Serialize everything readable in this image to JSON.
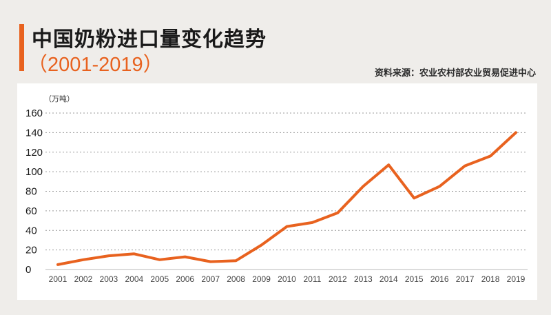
{
  "header": {
    "title": "中国奶粉进口量变化趋势",
    "subtitle": "（2001-2019）",
    "source": "资料来源：农业农村部农业贸易促进中心"
  },
  "colors": {
    "accent": "#e8621f",
    "background": "#efedea",
    "panel": "#ffffff",
    "grid": "#9a9a9a"
  },
  "chart_data": {
    "type": "line",
    "title": "中国奶粉进口量变化趋势",
    "subtitle": "（2001-2019）",
    "ylabel": "（万吨）",
    "xlabel": "",
    "ylim": [
      0,
      160
    ],
    "yticks": [
      0,
      20,
      40,
      60,
      80,
      100,
      120,
      140,
      160
    ],
    "grid": true,
    "x": [
      "2001",
      "2002",
      "2003",
      "2004",
      "2005",
      "2006",
      "2007",
      "2008",
      "2009",
      "2010",
      "2011",
      "2012",
      "2013",
      "2014",
      "2015",
      "2016",
      "2017",
      "2018",
      "2019"
    ],
    "series": [
      {
        "values": [
          5,
          10,
          14,
          16,
          10,
          13,
          8,
          9,
          25,
          44,
          48,
          58,
          85,
          107,
          73,
          85,
          106,
          116,
          140
        ]
      }
    ]
  }
}
